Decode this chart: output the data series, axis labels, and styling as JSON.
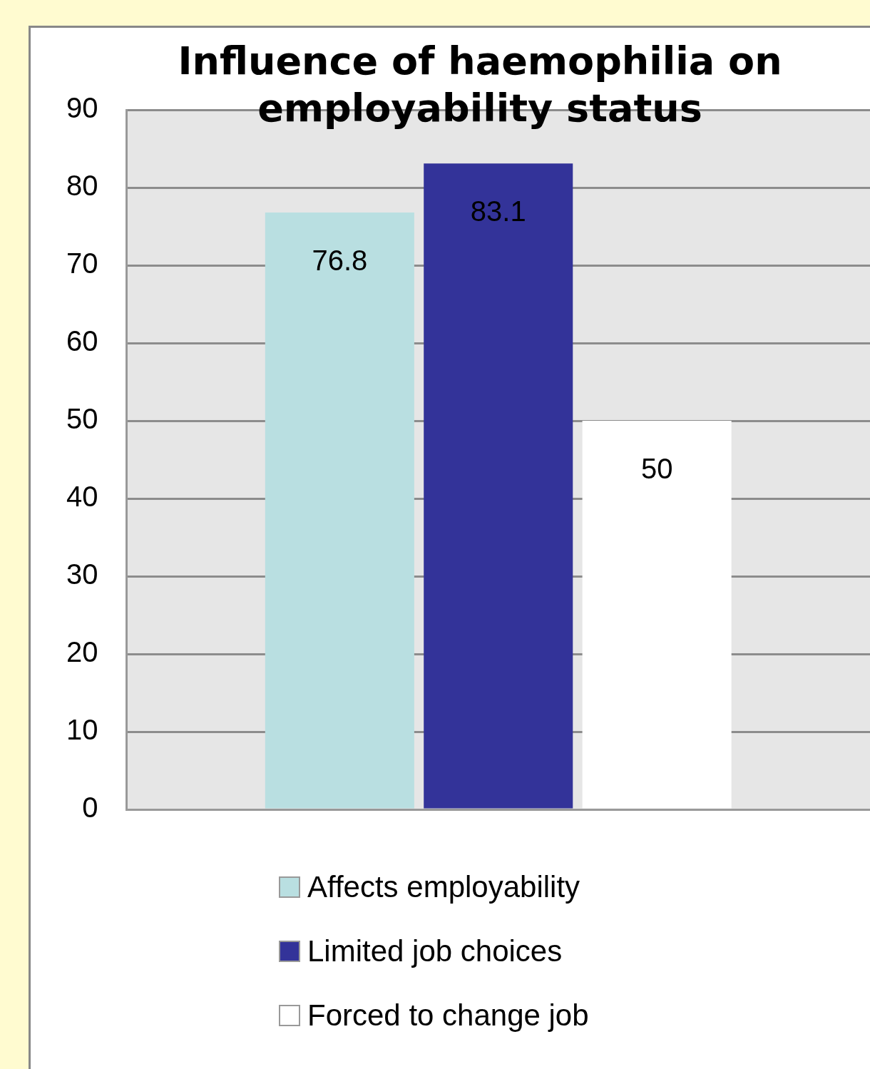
{
  "chart_data": {
    "type": "bar",
    "title": "Influence of haemophilia on employability status",
    "categories": [
      null
    ],
    "series": [
      {
        "name": "Affects employability",
        "color": "#b9dfe1",
        "values": [
          76.8
        ]
      },
      {
        "name": "Limited job choices",
        "color": "#333399",
        "values": [
          83.1
        ]
      },
      {
        "name": "Forced to change job",
        "color": "#ffffff",
        "values": [
          50
        ]
      }
    ],
    "ylim": [
      0,
      90
    ],
    "yticks": [
      0,
      10,
      20,
      30,
      40,
      50,
      60,
      70,
      80,
      90
    ],
    "grid": "y",
    "legend": "bottom",
    "data_labels": true
  }
}
